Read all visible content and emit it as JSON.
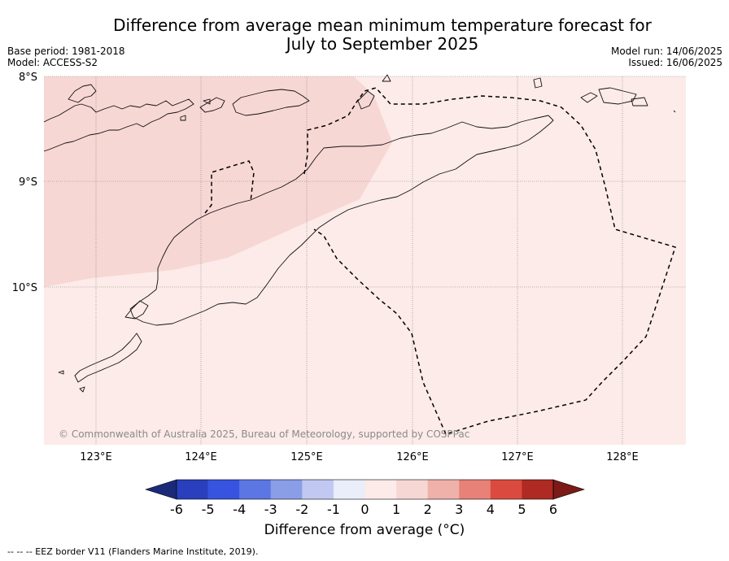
{
  "title_line1": "Difference from average mean minimum temperature forecast for",
  "title_line2": "July to September 2025",
  "meta": {
    "base_period": "Base period: 1981-2018",
    "model": "Model: ACCESS-S2",
    "model_run": "Model run: 14/06/2025",
    "issued": "Issued: 16/06/2025"
  },
  "map": {
    "lat_labels": [
      "8°S",
      "9°S",
      "10°S"
    ],
    "lon_labels": [
      "123°E",
      "124°E",
      "125°E",
      "126°E",
      "127°E",
      "128°E"
    ],
    "copyright": "© Commonwealth of Australia 2025, Bureau of Meteorology, supported by COSPPac",
    "colors": {
      "zone_1_to_2": "#f7d7d4",
      "zone_0_to_1": "#fcebe9"
    }
  },
  "legend": {
    "ticks": [
      "-6",
      "-5",
      "-4",
      "-3",
      "-2",
      "-1",
      "0",
      "1",
      "2",
      "3",
      "4",
      "5",
      "6"
    ],
    "colors": [
      "#1b2a78",
      "#2a3fbd",
      "#3654e0",
      "#5c77e3",
      "#8a9ee8",
      "#c1c9f2",
      "#eaedfa",
      "#fcebe9",
      "#f7d7d4",
      "#f0b1ab",
      "#e88178",
      "#db4a3e",
      "#ae2a22",
      "#7b1a16"
    ],
    "title": "Difference from average (°C)"
  },
  "footnote": "--  --  -- EEZ border V11 (Flanders Marine Institute, 2019)."
}
